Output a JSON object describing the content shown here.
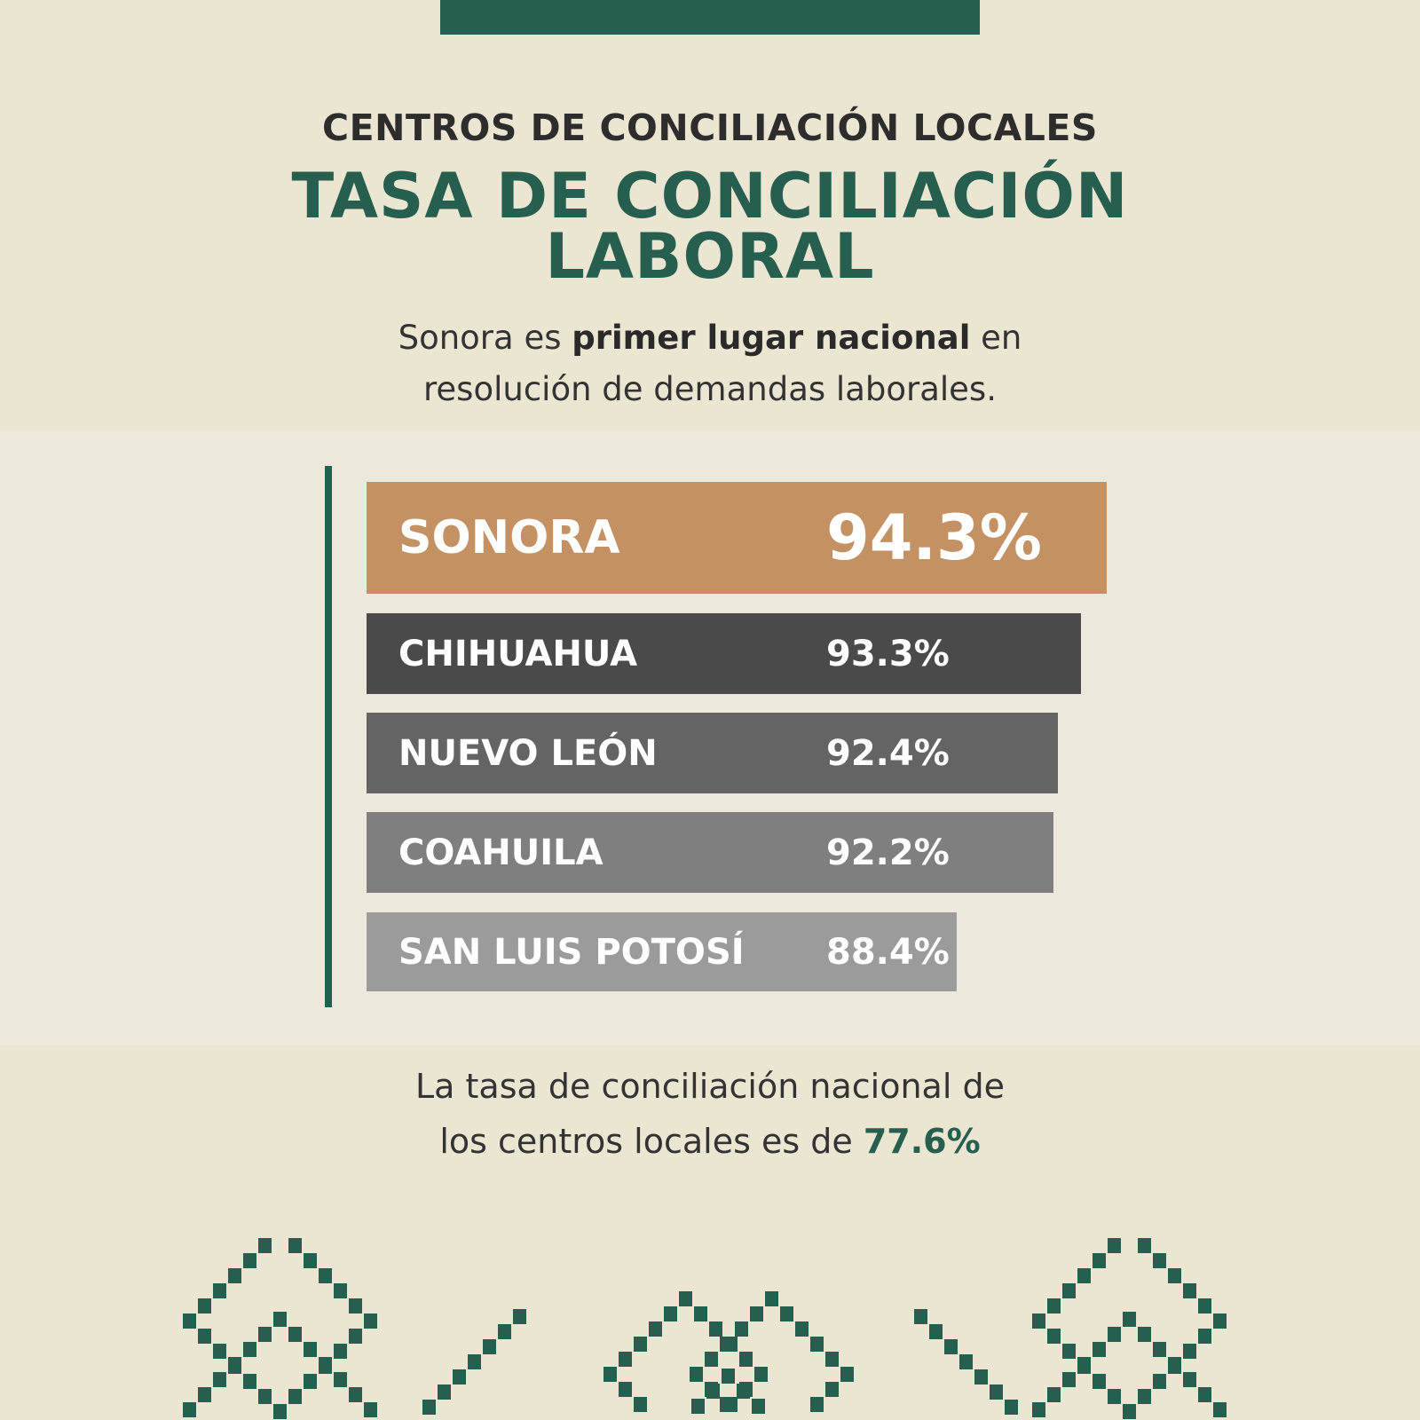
{
  "header": {
    "kicker": "CENTROS DE CONCILIACIÓN LOCALES",
    "title_line1": "TASA DE CONCILIACIÓN",
    "title_line2": "LABORAL",
    "subtitle_pre": "Sonora es ",
    "subtitle_bold": "primer lugar nacional",
    "subtitle_post": " en",
    "subtitle_line2": "resolución de demandas laborales."
  },
  "chart_data": {
    "type": "bar",
    "orientation": "horizontal",
    "categories": [
      "SONORA",
      "CHIHUAHUA",
      "NUEVO LEÓN",
      "COAHUILA",
      "SAN LUIS POTOSÍ"
    ],
    "values": [
      94.3,
      93.3,
      92.4,
      92.2,
      88.4
    ],
    "value_labels": [
      "94.3%",
      "93.3%",
      "92.4%",
      "92.2%",
      "88.4%"
    ],
    "colors": [
      "#c49163",
      "#4a4a4a",
      "#646464",
      "#7f7f7f",
      "#9b9b9b"
    ],
    "grid": false
  },
  "footer": {
    "line1": "La tasa de conciliación nacional de",
    "line2_pre": "los centros locales es de ",
    "line2_value": "77.6%"
  },
  "colors": {
    "accent": "#265e50",
    "background": "#ebe6d1",
    "highlight": "#c49163"
  }
}
